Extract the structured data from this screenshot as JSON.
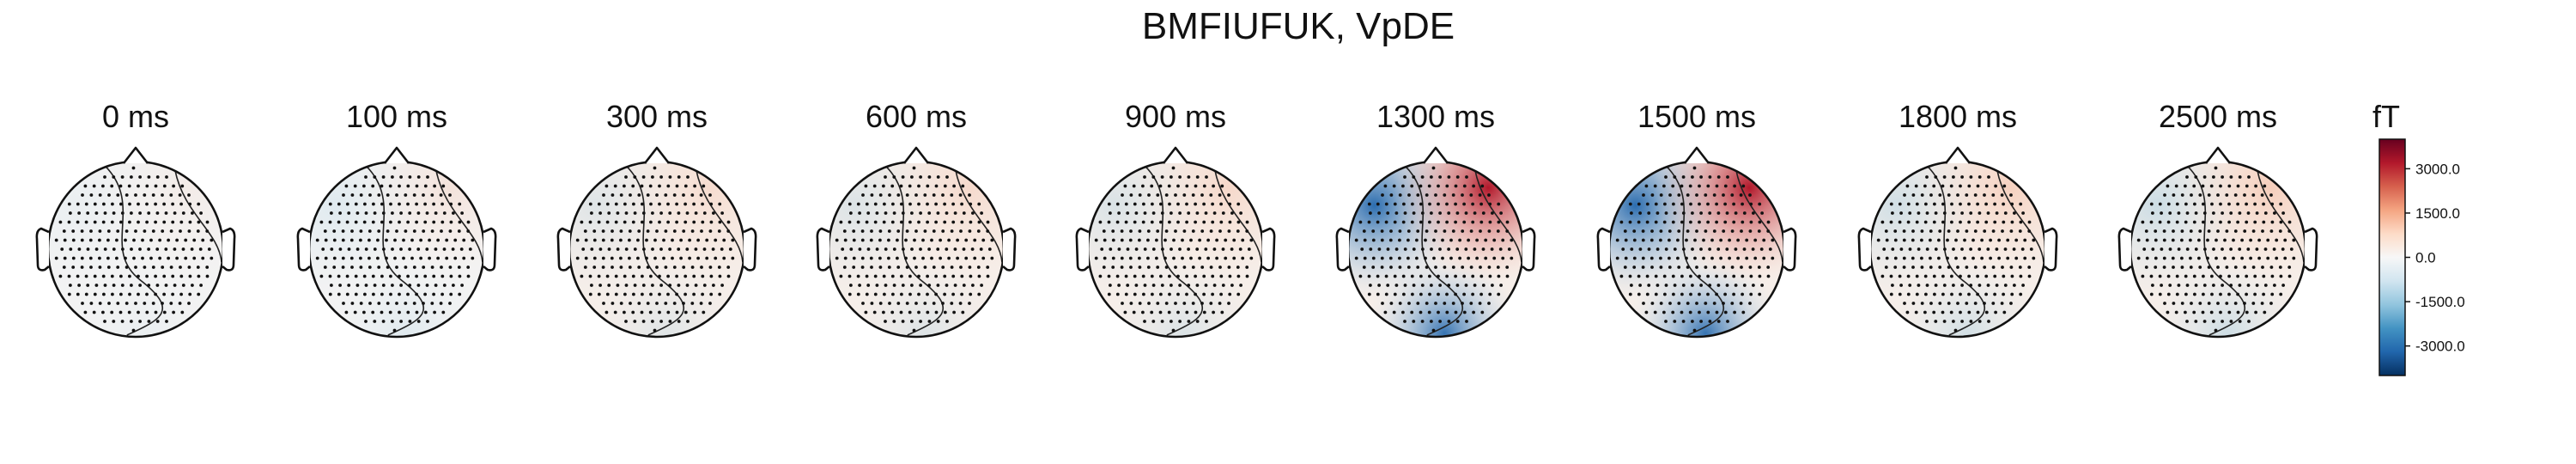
{
  "chart_data": {
    "type": "heatmap",
    "title": "BMFIUFUK, VpDE",
    "subtype": "topomap",
    "time_unit": "ms",
    "timepoints": [
      {
        "label": "0 ms",
        "pole_amplitude": 0.1
      },
      {
        "label": "100 ms",
        "pole_amplitude": 0.22
      },
      {
        "label": "300 ms",
        "pole_amplitude": 0.25
      },
      {
        "label": "600 ms",
        "pole_amplitude": 0.28
      },
      {
        "label": "900 ms",
        "pole_amplitude": 0.3
      },
      {
        "label": "1300 ms",
        "pole_amplitude": 1.0
      },
      {
        "label": "1500 ms",
        "pole_amplitude": 1.0
      },
      {
        "label": "1800 ms",
        "pole_amplitude": 0.4
      },
      {
        "label": "2500 ms",
        "pole_amplitude": 0.45
      }
    ],
    "colorbar": {
      "unit": "fT",
      "range": [
        -4000,
        4000
      ],
      "ticks": [
        {
          "value": 3000,
          "label": "3000.0"
        },
        {
          "value": 1500,
          "label": "1500.0"
        },
        {
          "value": 0,
          "label": "0.0"
        },
        {
          "value": -1500,
          "label": "-1500.0"
        },
        {
          "value": -3000,
          "label": "-3000.0"
        }
      ],
      "colors": [
        "#053061",
        "#2166ac",
        "#4393c3",
        "#92c5de",
        "#d1e5f0",
        "#f7f7f7",
        "#fddbc7",
        "#f4a582",
        "#d6604d",
        "#b2182b",
        "#67001f"
      ]
    }
  }
}
